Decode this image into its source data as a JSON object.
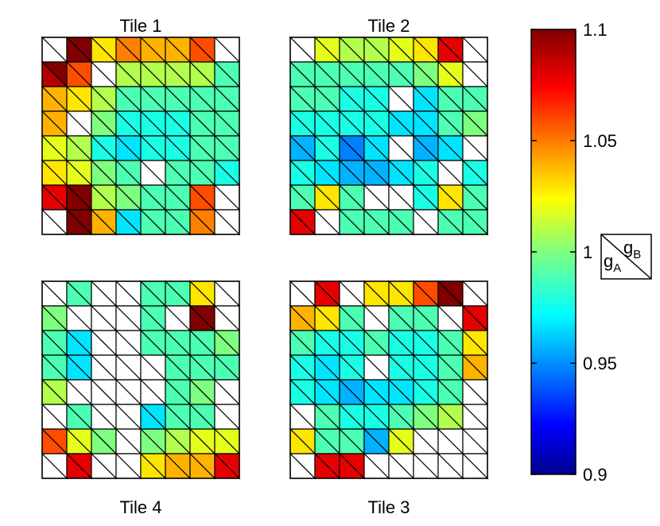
{
  "chart_data": {
    "type": "heatmap",
    "grid_size": 8,
    "cell_split": "diagonal from top-left to bottom-right; upper-right triangle = g_B, lower-left triangle = g_A",
    "tiles": [
      {
        "title": "Tile 1",
        "position": "top-left",
        "upper": [
          [
            null,
            1.1,
            1.03,
            1.05,
            1.04,
            1.04,
            1.06,
            null
          ],
          [
            1.1,
            1.06,
            null,
            1.01,
            1.01,
            1.01,
            1.01,
            0.99
          ],
          [
            1.04,
            1.03,
            1.01,
            0.99,
            0.99,
            0.99,
            0.99,
            0.99
          ],
          [
            1.04,
            null,
            1.0,
            0.98,
            0.98,
            0.98,
            0.99,
            0.99
          ],
          [
            1.02,
            1.01,
            0.98,
            0.97,
            0.98,
            0.98,
            0.99,
            0.99
          ],
          [
            1.03,
            1.02,
            1.0,
            0.99,
            null,
            0.99,
            0.99,
            0.98
          ],
          [
            1.08,
            1.1,
            1.01,
            1.0,
            0.99,
            0.99,
            1.06,
            null
          ],
          [
            null,
            1.1,
            1.04,
            0.97,
            0.99,
            0.99,
            1.05,
            null
          ]
        ],
        "lower": [
          [
            null,
            1.1,
            1.03,
            1.05,
            1.04,
            1.04,
            1.06,
            null
          ],
          [
            1.09,
            1.06,
            null,
            1.01,
            1.01,
            1.01,
            1.01,
            0.99
          ],
          [
            1.04,
            1.03,
            1.01,
            0.99,
            0.99,
            0.99,
            0.99,
            0.99
          ],
          [
            1.04,
            null,
            1.0,
            0.98,
            0.98,
            0.98,
            0.99,
            0.99
          ],
          [
            1.02,
            1.01,
            0.98,
            0.97,
            0.98,
            0.98,
            0.99,
            0.99
          ],
          [
            1.03,
            1.02,
            1.0,
            0.99,
            null,
            0.99,
            0.99,
            0.98
          ],
          [
            1.08,
            1.1,
            1.01,
            1.0,
            0.99,
            0.99,
            1.06,
            null
          ],
          [
            null,
            1.1,
            1.04,
            0.97,
            0.99,
            0.99,
            1.05,
            null
          ]
        ]
      },
      {
        "title": "Tile 2",
        "position": "top-right",
        "upper": [
          [
            null,
            1.02,
            1.01,
            1.01,
            1.02,
            1.03,
            1.08,
            null
          ],
          [
            0.99,
            0.99,
            0.99,
            0.99,
            0.99,
            1.0,
            1.02,
            null
          ],
          [
            0.99,
            0.99,
            0.98,
            0.98,
            null,
            0.97,
            0.99,
            0.99
          ],
          [
            0.98,
            0.98,
            0.98,
            0.98,
            0.97,
            0.97,
            0.99,
            1.0
          ],
          [
            0.96,
            0.98,
            0.95,
            0.97,
            null,
            0.96,
            0.97,
            null
          ],
          [
            0.98,
            0.97,
            0.96,
            0.96,
            0.97,
            0.98,
            null,
            0.98
          ],
          [
            0.99,
            1.03,
            0.99,
            null,
            null,
            0.98,
            1.03,
            0.99
          ],
          [
            1.08,
            null,
            0.99,
            0.99,
            0.99,
            null,
            0.99,
            0.99
          ]
        ],
        "lower": [
          [
            null,
            1.02,
            1.01,
            1.01,
            1.02,
            1.03,
            1.08,
            null
          ],
          [
            0.99,
            0.99,
            0.99,
            0.99,
            0.99,
            1.0,
            1.02,
            null
          ],
          [
            0.99,
            0.99,
            0.98,
            0.98,
            null,
            0.97,
            0.99,
            0.99
          ],
          [
            0.98,
            0.98,
            0.98,
            0.98,
            0.97,
            0.97,
            0.99,
            1.0
          ],
          [
            0.96,
            0.98,
            0.95,
            0.97,
            null,
            0.96,
            0.97,
            null
          ],
          [
            0.98,
            0.97,
            0.96,
            0.96,
            0.97,
            0.98,
            null,
            0.98
          ],
          [
            0.99,
            1.03,
            0.99,
            null,
            null,
            0.98,
            1.03,
            0.99
          ],
          [
            1.08,
            null,
            0.99,
            0.99,
            0.99,
            null,
            0.99,
            0.99
          ]
        ]
      },
      {
        "title": "Tile 4",
        "position": "bottom-left",
        "upper": [
          [
            null,
            0.99,
            null,
            null,
            0.99,
            0.99,
            1.03,
            null
          ],
          [
            1.0,
            null,
            null,
            null,
            0.99,
            null,
            1.1,
            null
          ],
          [
            0.99,
            0.97,
            null,
            null,
            0.99,
            0.99,
            0.99,
            1.0
          ],
          [
            0.99,
            0.97,
            null,
            null,
            null,
            0.99,
            0.99,
            0.99
          ],
          [
            1.01,
            null,
            null,
            null,
            null,
            0.99,
            1.0,
            null
          ],
          [
            null,
            0.99,
            null,
            null,
            0.97,
            0.99,
            0.99,
            null
          ],
          [
            1.06,
            1.02,
            1.0,
            null,
            1.0,
            1.01,
            1.02,
            1.02
          ],
          [
            null,
            1.08,
            null,
            null,
            1.03,
            1.04,
            1.04,
            1.08
          ]
        ],
        "lower": [
          [
            null,
            0.99,
            null,
            null,
            0.99,
            0.99,
            1.03,
            null
          ],
          [
            1.0,
            null,
            null,
            null,
            0.99,
            null,
            1.1,
            null
          ],
          [
            0.99,
            0.97,
            null,
            null,
            0.99,
            0.99,
            0.99,
            1.0
          ],
          [
            0.99,
            0.97,
            null,
            null,
            null,
            0.99,
            0.99,
            0.99
          ],
          [
            1.01,
            null,
            null,
            null,
            null,
            0.99,
            1.0,
            null
          ],
          [
            null,
            0.99,
            null,
            null,
            0.97,
            0.99,
            0.99,
            null
          ],
          [
            1.06,
            1.02,
            1.0,
            null,
            1.0,
            1.01,
            1.02,
            1.02
          ],
          [
            null,
            1.08,
            null,
            null,
            1.03,
            1.04,
            1.04,
            1.08
          ]
        ]
      },
      {
        "title": "Tile 3",
        "position": "bottom-right",
        "upper": [
          [
            null,
            1.08,
            null,
            1.03,
            1.03,
            1.06,
            1.1,
            null
          ],
          [
            1.04,
            1.03,
            0.99,
            null,
            0.99,
            0.99,
            null,
            1.08
          ],
          [
            0.99,
            0.98,
            0.98,
            0.99,
            0.98,
            0.98,
            0.99,
            1.03
          ],
          [
            0.98,
            0.97,
            0.98,
            null,
            0.98,
            0.98,
            0.99,
            1.04
          ],
          [
            0.98,
            0.97,
            0.96,
            0.97,
            0.97,
            0.98,
            0.99,
            null
          ],
          [
            null,
            0.99,
            0.98,
            0.98,
            0.99,
            1.0,
            1.01,
            null
          ],
          [
            1.03,
            0.99,
            0.99,
            0.96,
            1.02,
            null,
            null,
            null
          ],
          [
            null,
            1.08,
            1.08,
            null,
            null,
            null,
            null,
            null
          ]
        ],
        "lower": [
          [
            null,
            1.08,
            null,
            1.03,
            1.03,
            1.06,
            1.1,
            null
          ],
          [
            1.04,
            1.03,
            0.99,
            null,
            0.99,
            0.99,
            null,
            1.08
          ],
          [
            0.99,
            0.98,
            0.98,
            0.99,
            0.98,
            0.98,
            0.99,
            1.03
          ],
          [
            0.98,
            0.97,
            0.98,
            null,
            0.98,
            0.98,
            0.99,
            1.04
          ],
          [
            0.98,
            0.97,
            0.96,
            0.97,
            0.97,
            0.98,
            0.99,
            null
          ],
          [
            null,
            0.99,
            0.98,
            0.98,
            0.99,
            1.0,
            1.01,
            null
          ],
          [
            1.03,
            0.99,
            0.99,
            0.96,
            1.02,
            null,
            null,
            null
          ],
          [
            null,
            1.08,
            1.08,
            null,
            null,
            null,
            null,
            null
          ]
        ]
      }
    ],
    "colorbar": {
      "colormap": "jet",
      "range": [
        0.9,
        1.1
      ],
      "tick_values": [
        0.9,
        0.95,
        1.0,
        1.05,
        1.1
      ],
      "tick_labels": [
        "0.9",
        "0.95",
        "1",
        "1.05",
        "1.1"
      ]
    },
    "key": {
      "upper_label_base": "g",
      "upper_label_sub": "B",
      "lower_label_base": "g",
      "lower_label_sub": "A"
    },
    "missing_color": "#ffffff"
  }
}
